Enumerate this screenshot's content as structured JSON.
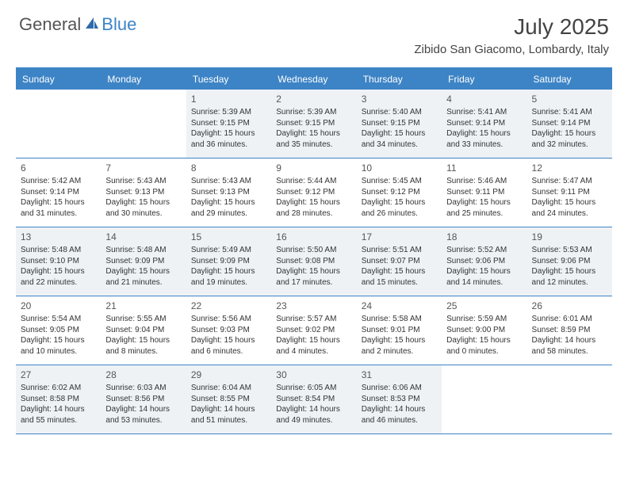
{
  "logo": {
    "text_general": "General",
    "text_blue": "Blue"
  },
  "title": "July 2025",
  "location": "Zibido San Giacomo, Lombardy, Italy",
  "colors": {
    "header_bg": "#3d84c6",
    "header_text": "#ffffff",
    "shaded_bg": "#eef2f5",
    "border": "#3d84c6",
    "text": "#333333"
  },
  "day_names": [
    "Sunday",
    "Monday",
    "Tuesday",
    "Wednesday",
    "Thursday",
    "Friday",
    "Saturday"
  ],
  "weeks": [
    [
      {
        "blank": true
      },
      {
        "blank": true
      },
      {
        "n": "1",
        "sr": "Sunrise: 5:39 AM",
        "ss": "Sunset: 9:15 PM",
        "dl": "Daylight: 15 hours and 36 minutes."
      },
      {
        "n": "2",
        "sr": "Sunrise: 5:39 AM",
        "ss": "Sunset: 9:15 PM",
        "dl": "Daylight: 15 hours and 35 minutes."
      },
      {
        "n": "3",
        "sr": "Sunrise: 5:40 AM",
        "ss": "Sunset: 9:15 PM",
        "dl": "Daylight: 15 hours and 34 minutes."
      },
      {
        "n": "4",
        "sr": "Sunrise: 5:41 AM",
        "ss": "Sunset: 9:14 PM",
        "dl": "Daylight: 15 hours and 33 minutes."
      },
      {
        "n": "5",
        "sr": "Sunrise: 5:41 AM",
        "ss": "Sunset: 9:14 PM",
        "dl": "Daylight: 15 hours and 32 minutes."
      }
    ],
    [
      {
        "n": "6",
        "sr": "Sunrise: 5:42 AM",
        "ss": "Sunset: 9:14 PM",
        "dl": "Daylight: 15 hours and 31 minutes."
      },
      {
        "n": "7",
        "sr": "Sunrise: 5:43 AM",
        "ss": "Sunset: 9:13 PM",
        "dl": "Daylight: 15 hours and 30 minutes."
      },
      {
        "n": "8",
        "sr": "Sunrise: 5:43 AM",
        "ss": "Sunset: 9:13 PM",
        "dl": "Daylight: 15 hours and 29 minutes."
      },
      {
        "n": "9",
        "sr": "Sunrise: 5:44 AM",
        "ss": "Sunset: 9:12 PM",
        "dl": "Daylight: 15 hours and 28 minutes."
      },
      {
        "n": "10",
        "sr": "Sunrise: 5:45 AM",
        "ss": "Sunset: 9:12 PM",
        "dl": "Daylight: 15 hours and 26 minutes."
      },
      {
        "n": "11",
        "sr": "Sunrise: 5:46 AM",
        "ss": "Sunset: 9:11 PM",
        "dl": "Daylight: 15 hours and 25 minutes."
      },
      {
        "n": "12",
        "sr": "Sunrise: 5:47 AM",
        "ss": "Sunset: 9:11 PM",
        "dl": "Daylight: 15 hours and 24 minutes."
      }
    ],
    [
      {
        "n": "13",
        "sr": "Sunrise: 5:48 AM",
        "ss": "Sunset: 9:10 PM",
        "dl": "Daylight: 15 hours and 22 minutes."
      },
      {
        "n": "14",
        "sr": "Sunrise: 5:48 AM",
        "ss": "Sunset: 9:09 PM",
        "dl": "Daylight: 15 hours and 21 minutes."
      },
      {
        "n": "15",
        "sr": "Sunrise: 5:49 AM",
        "ss": "Sunset: 9:09 PM",
        "dl": "Daylight: 15 hours and 19 minutes."
      },
      {
        "n": "16",
        "sr": "Sunrise: 5:50 AM",
        "ss": "Sunset: 9:08 PM",
        "dl": "Daylight: 15 hours and 17 minutes."
      },
      {
        "n": "17",
        "sr": "Sunrise: 5:51 AM",
        "ss": "Sunset: 9:07 PM",
        "dl": "Daylight: 15 hours and 15 minutes."
      },
      {
        "n": "18",
        "sr": "Sunrise: 5:52 AM",
        "ss": "Sunset: 9:06 PM",
        "dl": "Daylight: 15 hours and 14 minutes."
      },
      {
        "n": "19",
        "sr": "Sunrise: 5:53 AM",
        "ss": "Sunset: 9:06 PM",
        "dl": "Daylight: 15 hours and 12 minutes."
      }
    ],
    [
      {
        "n": "20",
        "sr": "Sunrise: 5:54 AM",
        "ss": "Sunset: 9:05 PM",
        "dl": "Daylight: 15 hours and 10 minutes."
      },
      {
        "n": "21",
        "sr": "Sunrise: 5:55 AM",
        "ss": "Sunset: 9:04 PM",
        "dl": "Daylight: 15 hours and 8 minutes."
      },
      {
        "n": "22",
        "sr": "Sunrise: 5:56 AM",
        "ss": "Sunset: 9:03 PM",
        "dl": "Daylight: 15 hours and 6 minutes."
      },
      {
        "n": "23",
        "sr": "Sunrise: 5:57 AM",
        "ss": "Sunset: 9:02 PM",
        "dl": "Daylight: 15 hours and 4 minutes."
      },
      {
        "n": "24",
        "sr": "Sunrise: 5:58 AM",
        "ss": "Sunset: 9:01 PM",
        "dl": "Daylight: 15 hours and 2 minutes."
      },
      {
        "n": "25",
        "sr": "Sunrise: 5:59 AM",
        "ss": "Sunset: 9:00 PM",
        "dl": "Daylight: 15 hours and 0 minutes."
      },
      {
        "n": "26",
        "sr": "Sunrise: 6:01 AM",
        "ss": "Sunset: 8:59 PM",
        "dl": "Daylight: 14 hours and 58 minutes."
      }
    ],
    [
      {
        "n": "27",
        "sr": "Sunrise: 6:02 AM",
        "ss": "Sunset: 8:58 PM",
        "dl": "Daylight: 14 hours and 55 minutes."
      },
      {
        "n": "28",
        "sr": "Sunrise: 6:03 AM",
        "ss": "Sunset: 8:56 PM",
        "dl": "Daylight: 14 hours and 53 minutes."
      },
      {
        "n": "29",
        "sr": "Sunrise: 6:04 AM",
        "ss": "Sunset: 8:55 PM",
        "dl": "Daylight: 14 hours and 51 minutes."
      },
      {
        "n": "30",
        "sr": "Sunrise: 6:05 AM",
        "ss": "Sunset: 8:54 PM",
        "dl": "Daylight: 14 hours and 49 minutes."
      },
      {
        "n": "31",
        "sr": "Sunrise: 6:06 AM",
        "ss": "Sunset: 8:53 PM",
        "dl": "Daylight: 14 hours and 46 minutes."
      },
      {
        "blank": true
      },
      {
        "blank": true
      }
    ]
  ],
  "shaded_rows": [
    0,
    2,
    4
  ]
}
